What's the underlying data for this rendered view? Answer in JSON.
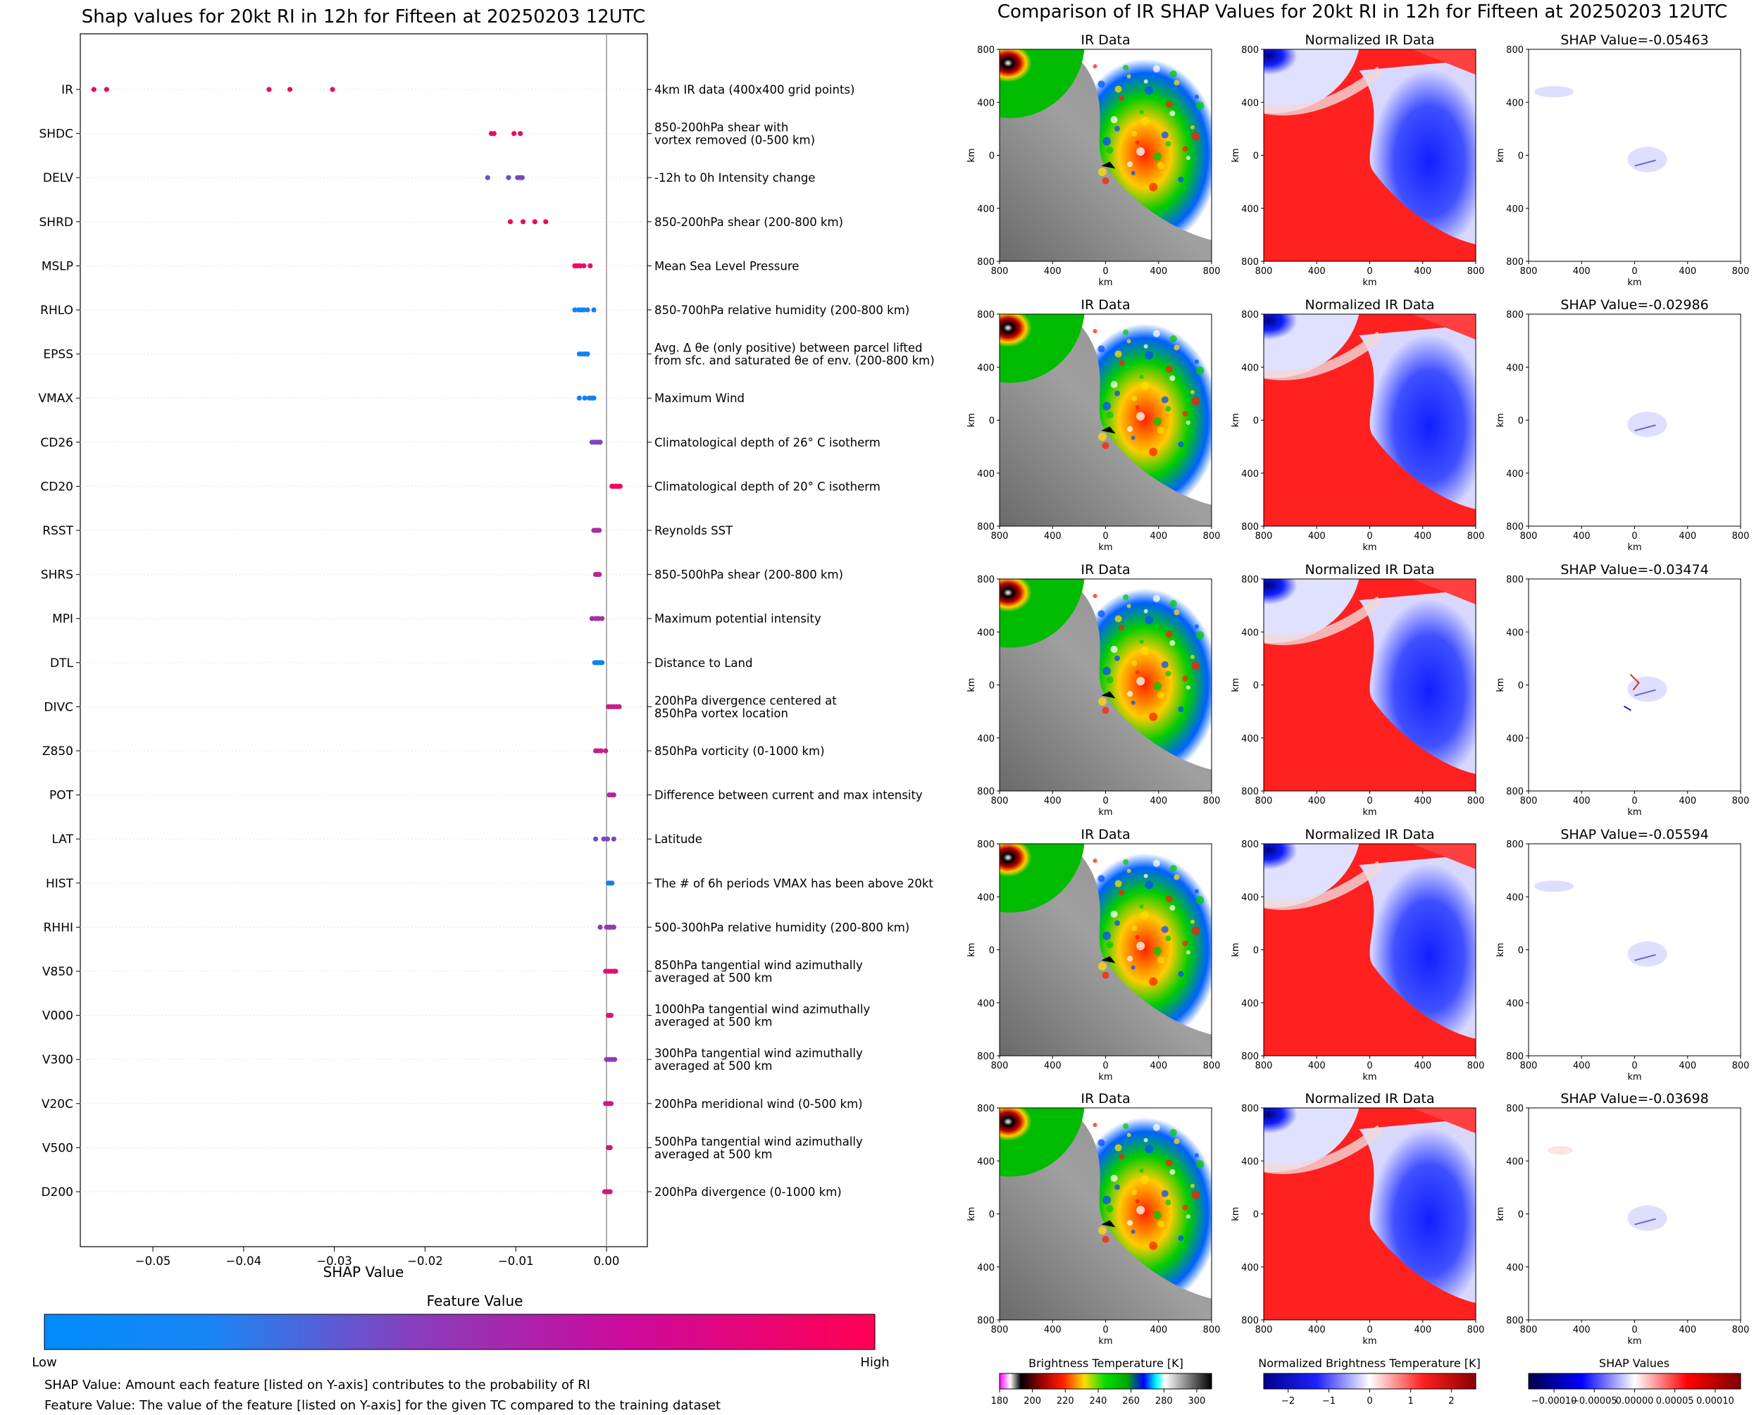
{
  "left": {
    "title": "Shap values for 20kt RI in 12h for Fifteen at 20250203 12UTC",
    "xlabel": "SHAP Value",
    "xticks": [
      "−0.05",
      "−0.04",
      "−0.03",
      "−0.02",
      "−0.01",
      "0.00"
    ],
    "colorbar_title": "Feature Value",
    "colorbar_low": "Low",
    "colorbar_high": "High",
    "note1": "SHAP Value: Amount each feature [listed on Y-axis] contributes to the probability of RI",
    "note2": "Feature Value: The value of the feature [listed on Y-axis] for the given TC compared to the training dataset"
  },
  "right": {
    "title": "Comparison of IR SHAP Values for 20kt RI in 12h for Fifteen at 20250203 12UTC",
    "col_ir": "IR Data",
    "col_norm": "Normalized IR Data",
    "shap_titles": [
      "SHAP Value=-0.05463",
      "SHAP Value=-0.02986",
      "SHAP Value=-0.03474",
      "SHAP Value=-0.05594",
      "SHAP Value=-0.03698"
    ],
    "axis_unit": "km",
    "ticks": [
      "800",
      "400",
      "0",
      "400",
      "800"
    ],
    "cb_ir_title": "Brightness Temperature [K]",
    "cb_ir_ticks": [
      "180",
      "200",
      "220",
      "240",
      "260",
      "280",
      "300"
    ],
    "cb_norm_title": "Normalized Brightness Temperature [K]",
    "cb_norm_ticks": [
      "−2",
      "−1",
      "0",
      "1",
      "2"
    ],
    "cb_shap_title": "SHAP Values",
    "cb_shap_ticks": [
      "−0.00010",
      "−0.00005",
      "0.00000",
      "0.00005",
      "0.00010"
    ]
  },
  "colors": {
    "low": "#008bfb",
    "mid": "#8a3dbc",
    "high": "#ff0052"
  },
  "chart_data": {
    "type": "scatter",
    "xlim": [
      -0.058,
      0.0045
    ],
    "features": [
      {
        "name": "IR",
        "desc": [
          "4km IR data (400x400 grid points)"
        ],
        "points": [
          [
            -0.0565,
            0.88
          ],
          [
            -0.0551,
            0.9
          ],
          [
            -0.0372,
            0.88
          ],
          [
            -0.0349,
            0.92
          ],
          [
            -0.0302,
            0.9
          ]
        ]
      },
      {
        "name": "SHDC",
        "desc": [
          "850-200hPa shear with",
          "vortex removed (0-500 km)"
        ],
        "points": [
          [
            -0.0127,
            0.92
          ],
          [
            -0.0124,
            0.92
          ],
          [
            -0.0102,
            0.9
          ],
          [
            -0.0095,
            0.9
          ]
        ]
      },
      {
        "name": "DELV",
        "desc": [
          "-12h to 0h Intensity change"
        ],
        "points": [
          [
            -0.0131,
            0.35
          ],
          [
            -0.0108,
            0.4
          ],
          [
            -0.0098,
            0.45
          ],
          [
            -0.0095,
            0.45
          ],
          [
            -0.0093,
            0.45
          ]
        ]
      },
      {
        "name": "SHRD",
        "desc": [
          "850-200hPa shear (200-800 km)"
        ],
        "points": [
          [
            -0.0106,
            0.92
          ],
          [
            -0.0092,
            0.95
          ],
          [
            -0.0079,
            0.95
          ],
          [
            -0.0067,
            0.95
          ]
        ]
      },
      {
        "name": "MSLP",
        "desc": [
          "Mean Sea Level Pressure"
        ],
        "points": [
          [
            -0.0035,
            0.95
          ],
          [
            -0.0032,
            0.95
          ],
          [
            -0.0029,
            0.95
          ],
          [
            -0.0025,
            0.92
          ],
          [
            -0.0018,
            0.9
          ]
        ]
      },
      {
        "name": "RHLO",
        "desc": [
          "850-700hPa relative humidity (200-800 km)"
        ],
        "points": [
          [
            -0.0035,
            0.05
          ],
          [
            -0.0031,
            0.05
          ],
          [
            -0.0028,
            0.08
          ],
          [
            -0.0025,
            0.05
          ],
          [
            -0.0021,
            0.08
          ],
          [
            -0.0014,
            0.1
          ]
        ]
      },
      {
        "name": "EPSS",
        "desc": [
          "Avg. Δ θe (only positive) between parcel lifted",
          "from sfc. and saturated θe of env. (200-800 km)"
        ],
        "points": [
          [
            -0.003,
            0.05
          ],
          [
            -0.0027,
            0.05
          ],
          [
            -0.0024,
            0.1
          ],
          [
            -0.0021,
            0.05
          ]
        ]
      },
      {
        "name": "VMAX",
        "desc": [
          "Maximum Wind"
        ],
        "points": [
          [
            -0.003,
            0.08
          ],
          [
            -0.0024,
            0.05
          ],
          [
            -0.0019,
            0.1
          ],
          [
            -0.0016,
            0.08
          ],
          [
            -0.0014,
            0.05
          ]
        ]
      },
      {
        "name": "CD26",
        "desc": [
          "Climatological depth of 26° C isotherm"
        ],
        "points": [
          [
            -0.0016,
            0.45
          ],
          [
            -0.0013,
            0.45
          ],
          [
            -0.0011,
            0.45
          ],
          [
            -0.0009,
            0.45
          ],
          [
            -0.0007,
            0.45
          ]
        ]
      },
      {
        "name": "CD20",
        "desc": [
          "Climatological depth of 20° C isotherm"
        ],
        "points": [
          [
            0.0006,
            0.95
          ],
          [
            0.0008,
            0.95
          ],
          [
            0.001,
            0.95
          ],
          [
            0.0012,
            0.95
          ],
          [
            0.0015,
            0.95
          ]
        ]
      },
      {
        "name": "RSST",
        "desc": [
          "Reynolds SST"
        ],
        "points": [
          [
            -0.0014,
            0.6
          ],
          [
            -0.0012,
            0.6
          ],
          [
            -0.001,
            0.65
          ],
          [
            -0.0008,
            0.6
          ]
        ]
      },
      {
        "name": "SHRS",
        "desc": [
          "850-500hPa shear (200-800 km)"
        ],
        "points": [
          [
            -0.0012,
            0.7
          ],
          [
            -0.001,
            0.7
          ],
          [
            -0.0008,
            0.7
          ]
        ]
      },
      {
        "name": "MPI",
        "desc": [
          "Maximum potential intensity"
        ],
        "points": [
          [
            -0.0016,
            0.6
          ],
          [
            -0.0012,
            0.6
          ],
          [
            -0.0009,
            0.6
          ],
          [
            -0.0005,
            0.6
          ]
        ]
      },
      {
        "name": "DTL",
        "desc": [
          "Distance to Land"
        ],
        "points": [
          [
            -0.0013,
            0.05
          ],
          [
            -0.0011,
            0.05
          ],
          [
            -0.0009,
            0.05
          ],
          [
            -0.0007,
            0.05
          ],
          [
            -0.0005,
            0.05
          ]
        ]
      },
      {
        "name": "DIVC",
        "desc": [
          "200hPa divergence centered at",
          "850hPa vortex location"
        ],
        "points": [
          [
            0.0002,
            0.75
          ],
          [
            0.0005,
            0.75
          ],
          [
            0.0008,
            0.75
          ],
          [
            0.0011,
            0.75
          ],
          [
            0.0014,
            0.75
          ]
        ]
      },
      {
        "name": "Z850",
        "desc": [
          "850hPa vorticity (0-1000 km)"
        ],
        "points": [
          [
            -0.0012,
            0.75
          ],
          [
            -0.0009,
            0.75
          ],
          [
            -0.0006,
            0.75
          ],
          [
            -0.0001,
            0.75
          ]
        ]
      },
      {
        "name": "POT",
        "desc": [
          "Difference between current and max intensity"
        ],
        "points": [
          [
            0.0003,
            0.7
          ],
          [
            0.0006,
            0.7
          ],
          [
            0.0008,
            0.7
          ]
        ]
      },
      {
        "name": "LAT",
        "desc": [
          "Latitude"
        ],
        "points": [
          [
            -0.0012,
            0.4
          ],
          [
            -0.0003,
            0.45
          ],
          [
            0.0001,
            0.45
          ],
          [
            0.0008,
            0.4
          ]
        ]
      },
      {
        "name": "HIST",
        "desc": [
          "The # of 6h periods VMAX has been above 20kt"
        ],
        "points": [
          [
            0.0002,
            0.1
          ],
          [
            0.0004,
            0.1
          ],
          [
            0.0006,
            0.1
          ]
        ]
      },
      {
        "name": "RHHI",
        "desc": [
          "500-300hPa relative humidity (200-800 km)"
        ],
        "points": [
          [
            -0.0007,
            0.55
          ],
          [
            0.0,
            0.55
          ],
          [
            0.0003,
            0.55
          ],
          [
            0.0005,
            0.55
          ],
          [
            0.0008,
            0.5
          ]
        ]
      },
      {
        "name": "V850",
        "desc": [
          "850hPa tangential wind azimuthally",
          "averaged at 500 km"
        ],
        "points": [
          [
            -0.0001,
            0.85
          ],
          [
            0.0002,
            0.85
          ],
          [
            0.0005,
            0.85
          ],
          [
            0.0008,
            0.85
          ],
          [
            0.001,
            0.85
          ]
        ]
      },
      {
        "name": "V000",
        "desc": [
          "1000hPa tangential wind azimuthally",
          "averaged at 500 km"
        ],
        "points": [
          [
            0.0002,
            0.8
          ],
          [
            0.0004,
            0.8
          ],
          [
            0.0005,
            0.8
          ]
        ]
      },
      {
        "name": "V300",
        "desc": [
          "300hPa tangential wind azimuthally",
          "averaged at 500 km"
        ],
        "points": [
          [
            0.0,
            0.55
          ],
          [
            0.0003,
            0.55
          ],
          [
            0.0006,
            0.5
          ],
          [
            0.0009,
            0.5
          ]
        ]
      },
      {
        "name": "V20C",
        "desc": [
          "200hPa meridional wind (0-500 km)"
        ],
        "points": [
          [
            -0.0001,
            0.8
          ],
          [
            0.0001,
            0.8
          ],
          [
            0.0003,
            0.8
          ],
          [
            0.0005,
            0.8
          ]
        ]
      },
      {
        "name": "V500",
        "desc": [
          "500hPa tangential wind azimuthally",
          "averaged at 500 km"
        ],
        "points": [
          [
            0.0002,
            0.8
          ],
          [
            0.0004,
            0.8
          ]
        ]
      },
      {
        "name": "D200",
        "desc": [
          "200hPa divergence (0-1000 km)"
        ],
        "points": [
          [
            -0.0002,
            0.8
          ],
          [
            0.0,
            0.8
          ],
          [
            0.0002,
            0.8
          ],
          [
            0.0004,
            0.8
          ]
        ]
      }
    ]
  }
}
